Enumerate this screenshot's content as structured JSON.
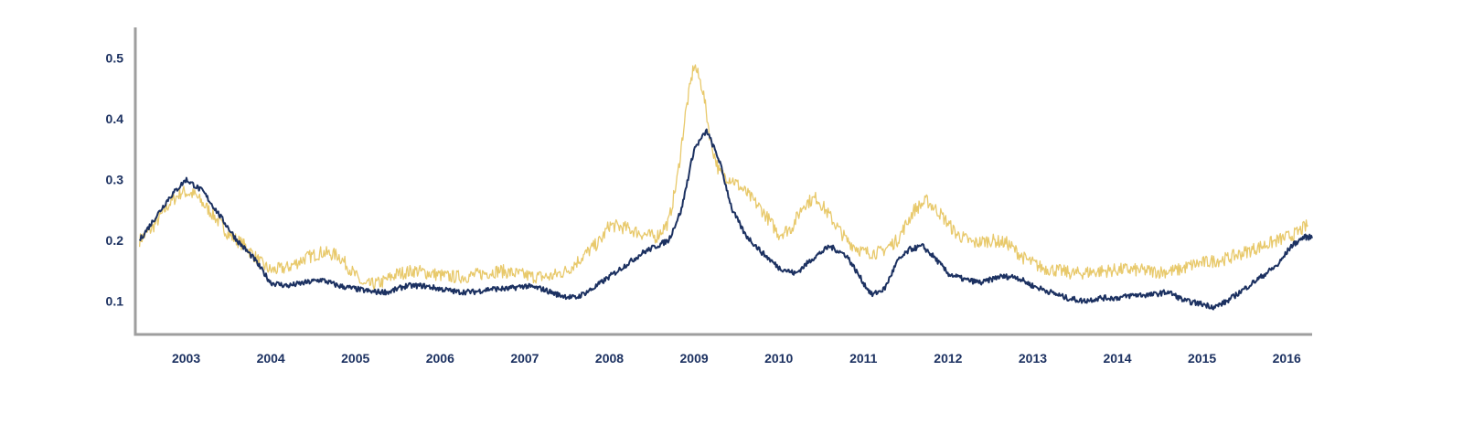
{
  "chart_data": {
    "type": "line",
    "title": "",
    "xlabel": "",
    "ylabel": "",
    "x_range": [
      2002.4,
      2016.3
    ],
    "ylim": [
      0.045,
      0.55
    ],
    "grid": false,
    "legend": "none",
    "x_ticks": [
      {
        "value": 2003.0,
        "label": "2003"
      },
      {
        "value": 2004.0,
        "label": "2004"
      },
      {
        "value": 2005.0,
        "label": "2005"
      },
      {
        "value": 2006.0,
        "label": "2006"
      },
      {
        "value": 2007.0,
        "label": "2007"
      },
      {
        "value": 2008.0,
        "label": "2008"
      },
      {
        "value": 2009.0,
        "label": "2009"
      },
      {
        "value": 2010.0,
        "label": "2010"
      },
      {
        "value": 2011.0,
        "label": "2011"
      },
      {
        "value": 2012.0,
        "label": "2012"
      },
      {
        "value": 2013.0,
        "label": "2013"
      },
      {
        "value": 2014.0,
        "label": "2014"
      },
      {
        "value": 2015.0,
        "label": "2015"
      },
      {
        "value": 2016.0,
        "label": "2016"
      }
    ],
    "y_ticks": [
      {
        "value": 0.1,
        "label": "0.1"
      },
      {
        "value": 0.2,
        "label": "0.2"
      },
      {
        "value": 0.3,
        "label": "0.3"
      },
      {
        "value": 0.4,
        "label": "0.4"
      },
      {
        "value": 0.5,
        "label": "0.5"
      }
    ],
    "colors": {
      "axis": "#9e9e9e",
      "tick_text": "#1c3161"
    },
    "series": [
      {
        "color": "#e8c96b",
        "x": [
          2002.45,
          2002.6,
          2002.8,
          2002.95,
          2003.1,
          2003.3,
          2003.5,
          2003.7,
          2003.9,
          2004.0,
          2004.2,
          2004.4,
          2004.6,
          2004.8,
          2004.95,
          2005.1,
          2005.3,
          2005.5,
          2005.7,
          2005.9,
          2006.1,
          2006.3,
          2006.5,
          2006.7,
          2006.9,
          2007.1,
          2007.3,
          2007.5,
          2007.7,
          2007.9,
          2008.0,
          2008.2,
          2008.4,
          2008.55,
          2008.7,
          2008.8,
          2008.9,
          2009.0,
          2009.1,
          2009.2,
          2009.3,
          2009.45,
          2009.6,
          2009.8,
          2010.0,
          2010.15,
          2010.3,
          2010.45,
          2010.6,
          2010.8,
          2011.0,
          2011.2,
          2011.4,
          2011.6,
          2011.75,
          2011.9,
          2012.1,
          2012.3,
          2012.5,
          2012.7,
          2012.9,
          2013.1,
          2013.3,
          2013.5,
          2013.7,
          2013.9,
          2014.1,
          2014.3,
          2014.5,
          2014.7,
          2014.9,
          2015.1,
          2015.3,
          2015.5,
          2015.7,
          2015.9,
          2016.1,
          2016.25
        ],
        "values": [
          0.2,
          0.22,
          0.26,
          0.28,
          0.275,
          0.245,
          0.21,
          0.19,
          0.16,
          0.15,
          0.155,
          0.17,
          0.18,
          0.175,
          0.15,
          0.125,
          0.13,
          0.145,
          0.15,
          0.145,
          0.14,
          0.14,
          0.145,
          0.15,
          0.145,
          0.14,
          0.14,
          0.15,
          0.175,
          0.2,
          0.225,
          0.22,
          0.21,
          0.205,
          0.23,
          0.3,
          0.41,
          0.49,
          0.45,
          0.36,
          0.31,
          0.3,
          0.28,
          0.25,
          0.21,
          0.22,
          0.26,
          0.27,
          0.24,
          0.2,
          0.18,
          0.18,
          0.2,
          0.25,
          0.265,
          0.245,
          0.21,
          0.195,
          0.2,
          0.195,
          0.17,
          0.155,
          0.15,
          0.145,
          0.148,
          0.15,
          0.152,
          0.15,
          0.148,
          0.15,
          0.16,
          0.165,
          0.17,
          0.18,
          0.19,
          0.2,
          0.21,
          0.225
        ]
      },
      {
        "color": "#1c3161",
        "x": [
          2002.45,
          2002.6,
          2002.8,
          2003.0,
          2003.2,
          2003.4,
          2003.6,
          2003.8,
          2004.0,
          2004.2,
          2004.4,
          2004.6,
          2004.8,
          2005.0,
          2005.2,
          2005.4,
          2005.6,
          2005.8,
          2006.0,
          2006.2,
          2006.4,
          2006.6,
          2006.8,
          2007.0,
          2007.2,
          2007.4,
          2007.6,
          2007.8,
          2008.0,
          2008.2,
          2008.4,
          2008.55,
          2008.7,
          2008.85,
          2009.0,
          2009.15,
          2009.3,
          2009.45,
          2009.6,
          2009.8,
          2010.0,
          2010.2,
          2010.4,
          2010.6,
          2010.8,
          2011.0,
          2011.1,
          2011.25,
          2011.4,
          2011.55,
          2011.7,
          2011.85,
          2012.0,
          2012.2,
          2012.4,
          2012.6,
          2012.8,
          2013.0,
          2013.2,
          2013.4,
          2013.6,
          2013.8,
          2014.0,
          2014.2,
          2014.4,
          2014.6,
          2014.8,
          2015.0,
          2015.15,
          2015.3,
          2015.5,
          2015.7,
          2015.9,
          2016.05,
          2016.2,
          2016.3
        ],
        "values": [
          0.2,
          0.23,
          0.27,
          0.3,
          0.28,
          0.24,
          0.2,
          0.17,
          0.13,
          0.125,
          0.13,
          0.135,
          0.125,
          0.12,
          0.115,
          0.115,
          0.125,
          0.125,
          0.12,
          0.115,
          0.115,
          0.12,
          0.12,
          0.125,
          0.12,
          0.11,
          0.105,
          0.12,
          0.14,
          0.16,
          0.18,
          0.19,
          0.2,
          0.25,
          0.35,
          0.38,
          0.33,
          0.25,
          0.21,
          0.18,
          0.155,
          0.145,
          0.17,
          0.19,
          0.175,
          0.13,
          0.11,
          0.12,
          0.165,
          0.185,
          0.19,
          0.17,
          0.145,
          0.135,
          0.13,
          0.14,
          0.14,
          0.125,
          0.115,
          0.105,
          0.1,
          0.105,
          0.105,
          0.11,
          0.11,
          0.115,
          0.1,
          0.095,
          0.09,
          0.1,
          0.12,
          0.14,
          0.16,
          0.19,
          0.205,
          0.205
        ]
      }
    ]
  }
}
